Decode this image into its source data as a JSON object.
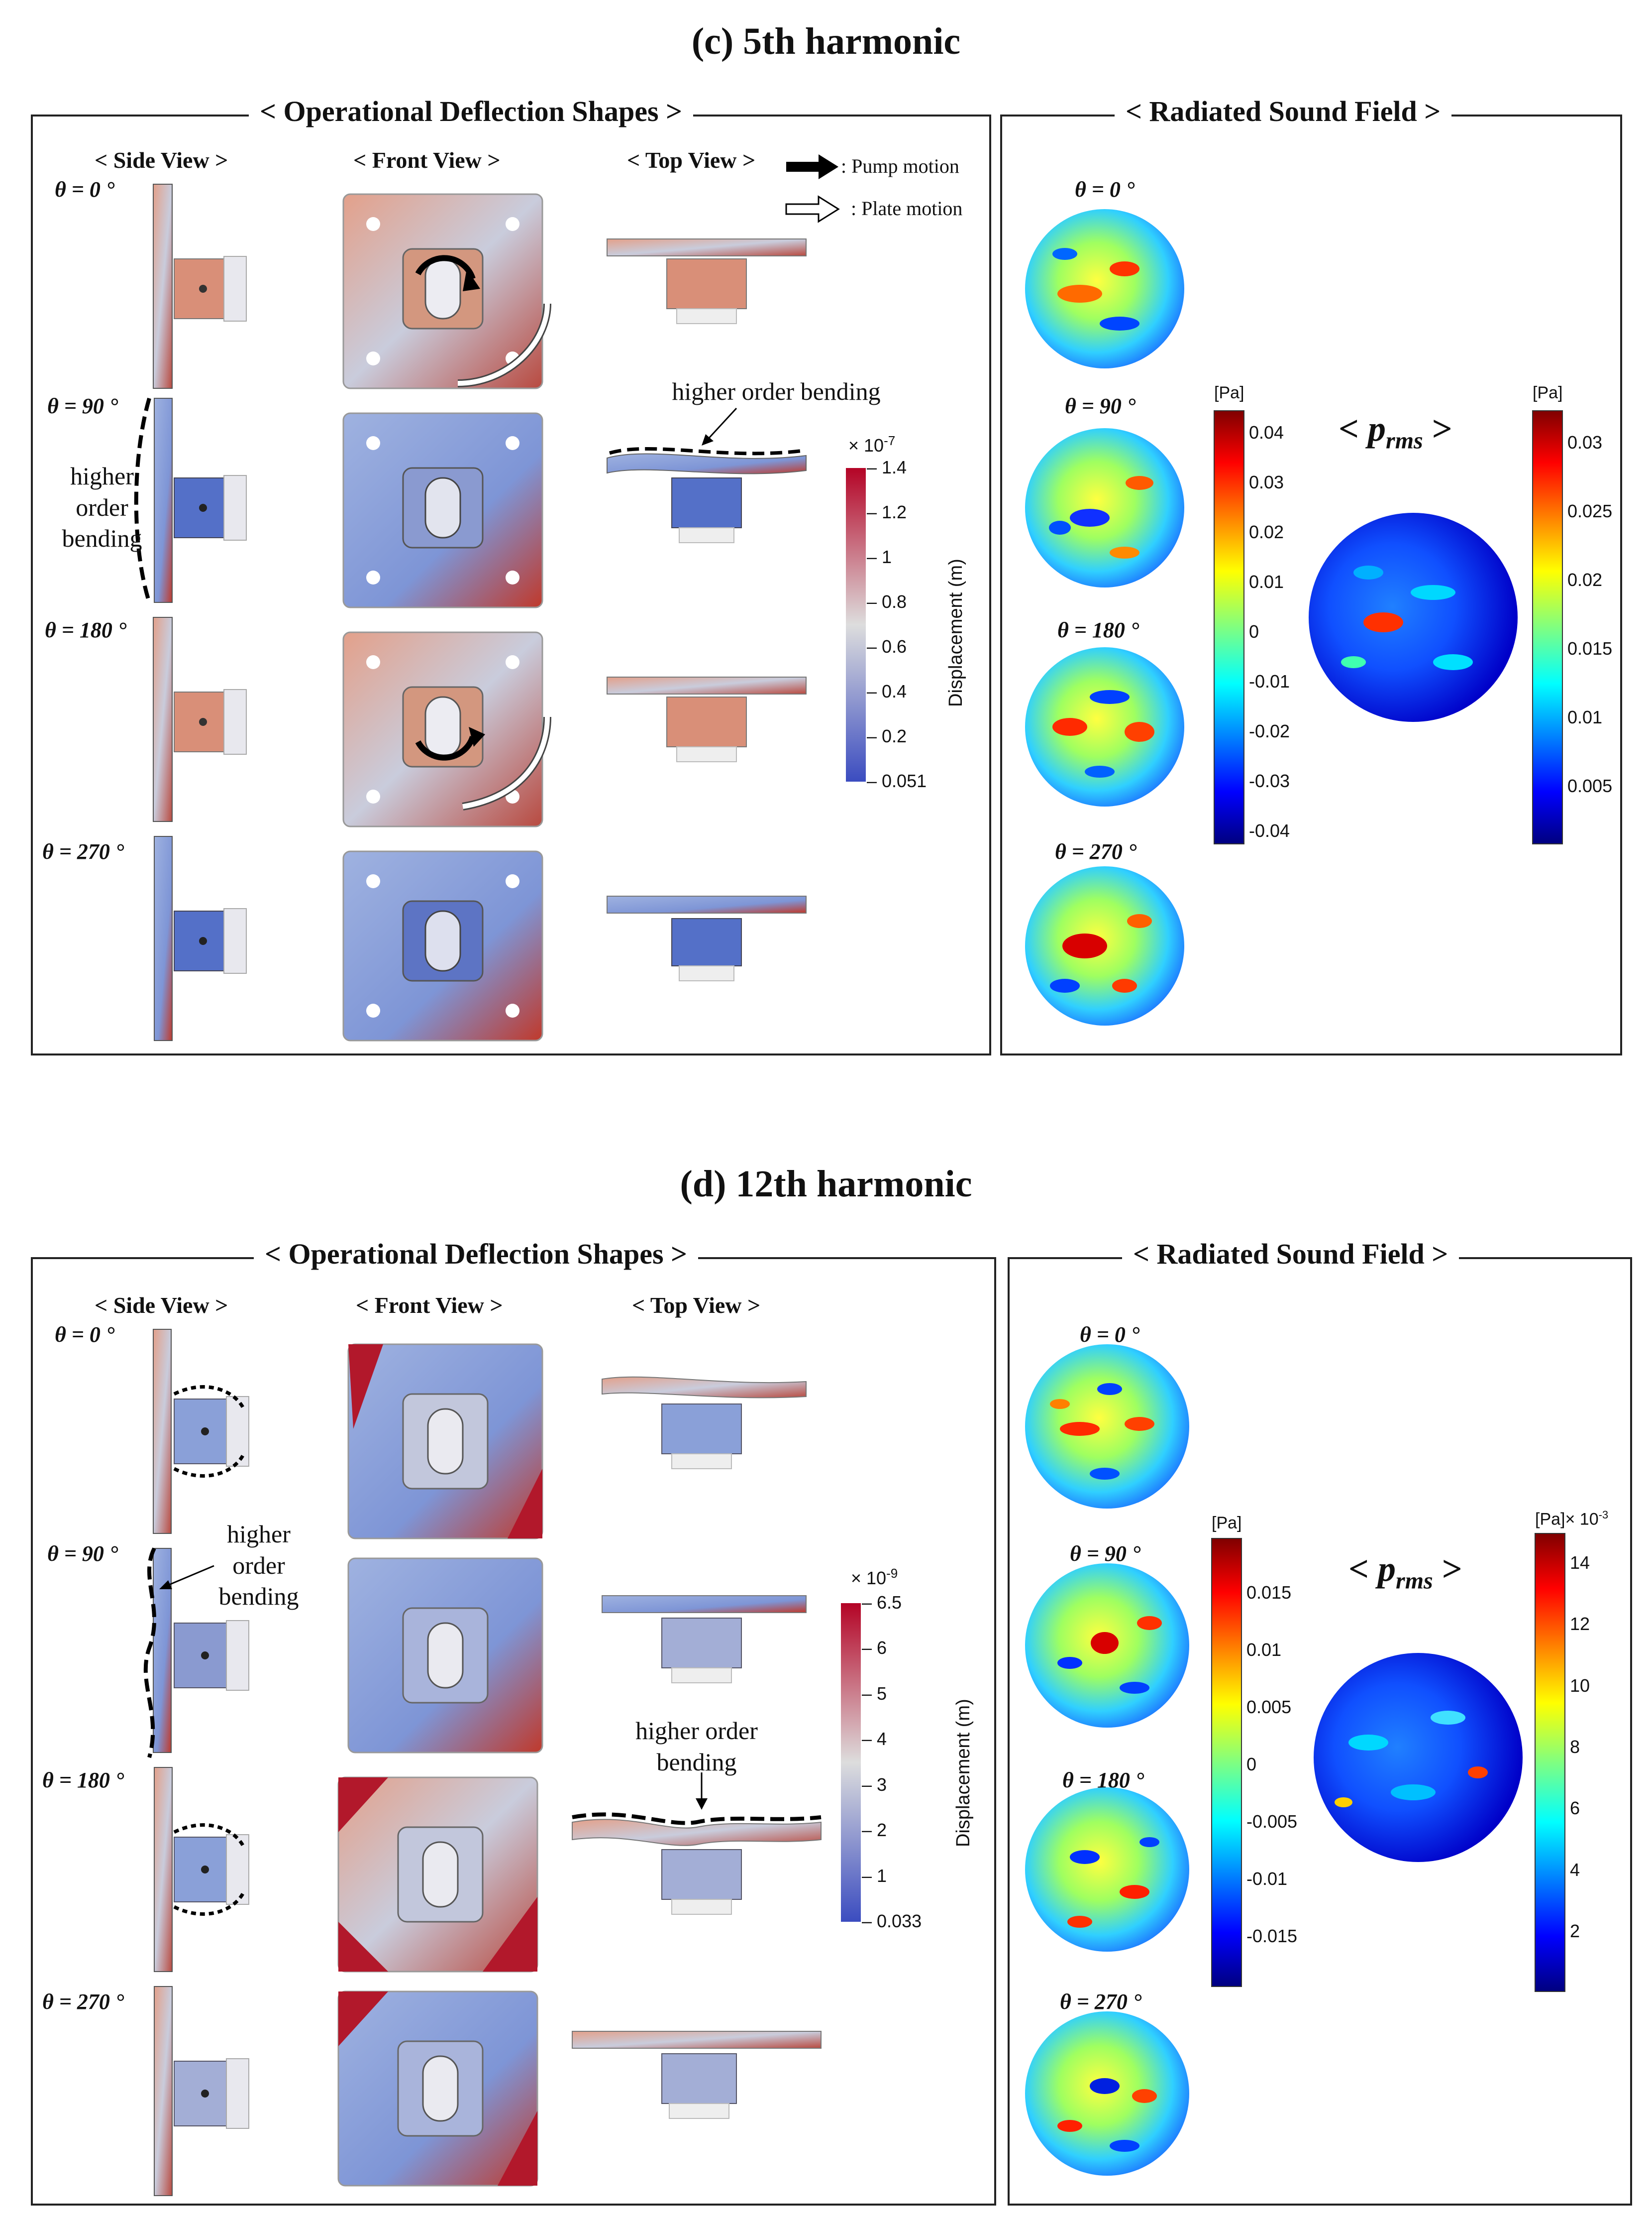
{
  "figure": {
    "c": {
      "title": "(c) 5th harmonic",
      "ods_heading": "< Operational Deflection Shapes >",
      "rsf_heading": "< Radiated Sound Field >",
      "side_view": "< Side View >",
      "front_view": "< Front View >",
      "top_view": "< Top View >",
      "thetas": [
        "θ = 0 °",
        "θ = 90 °",
        "θ = 180 °",
        "θ = 270 °"
      ],
      "legend_pump": ": Pump motion",
      "legend_plate": ": Plate motion",
      "note_side": "higher\norder\nbending",
      "note_top": "higher order bending",
      "disp_exponent": "× 10",
      "disp_exponent_power": "-7",
      "disp_axis_title": "Displacement (m)",
      "disp_ticks": [
        "1.4",
        "1.2",
        "1",
        "0.8",
        "0.6",
        "0.4",
        "0.2",
        "0.051"
      ],
      "pa_unit": "[Pa]",
      "pa_ticks": [
        "0.04",
        "0.03",
        "0.02",
        "0.01",
        "0",
        "-0.01",
        "-0.02",
        "-0.03",
        "-0.04"
      ],
      "prms_unit": "[Pa]",
      "prms_ticks": [
        "0.03",
        "0.025",
        "0.02",
        "0.015",
        "0.01",
        "0.005"
      ],
      "prms_label": "p",
      "prms_sub": "rms"
    },
    "d": {
      "title": "(d) 12th harmonic",
      "ods_heading": "< Operational Deflection Shapes >",
      "rsf_heading": "< Radiated Sound Field >",
      "side_view": "< Side View >",
      "front_view": "< Front View >",
      "top_view": "< Top View >",
      "thetas": [
        "θ = 0 °",
        "θ = 90 °",
        "θ = 180 °",
        "θ = 270 °"
      ],
      "note_side": "higher\norder\nbending",
      "note_top": "higher order\nbending",
      "disp_exponent": "× 10",
      "disp_exponent_power": "-9",
      "disp_axis_title": "Displacement (m)",
      "disp_ticks": [
        "6.5",
        "6",
        "5",
        "4",
        "3",
        "2",
        "1",
        "0.033"
      ],
      "pa_unit": "[Pa]",
      "pa_ticks": [
        "0.015",
        "0.01",
        "0.005",
        "0",
        "-0.005",
        "-0.01",
        "-0.015"
      ],
      "prms_unit": "[Pa]",
      "prms_exponent": "× 10",
      "prms_exponent_power": "-3",
      "prms_ticks": [
        "14",
        "12",
        "10",
        "8",
        "6",
        "4",
        "2"
      ],
      "prms_label": "p",
      "prms_sub": "rms"
    }
  },
  "colors": {
    "jet_dark_red": "#7f0000",
    "jet_red": "#ff0000",
    "jet_yellow": "#ffff00",
    "jet_cyan": "#00ffff",
    "jet_blue": "#0000ff",
    "jet_dark_blue": "#00007f",
    "disp_red": "#b40426",
    "disp_white": "#dddddd",
    "disp_blue": "#3b4cc0"
  }
}
